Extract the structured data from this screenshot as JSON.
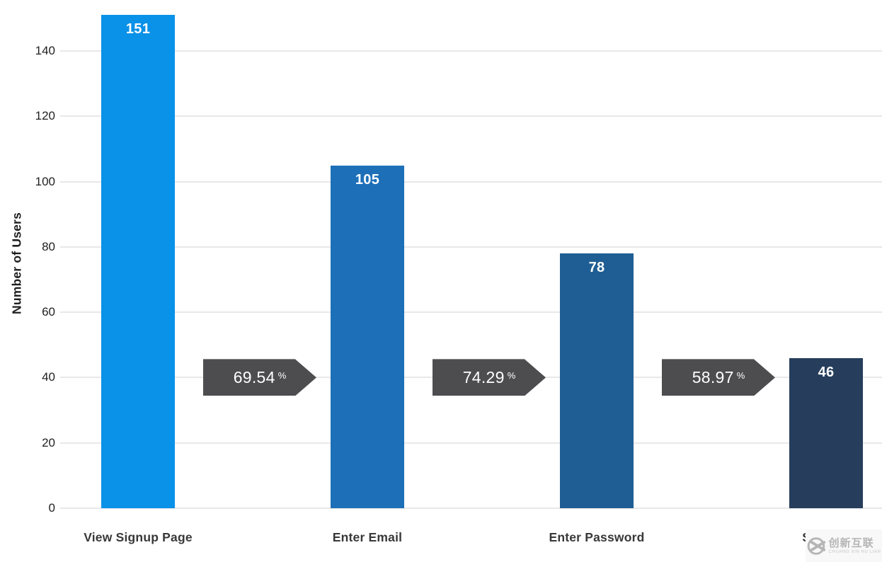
{
  "chart_data": {
    "type": "bar",
    "subtype": "funnel-steps-with-conversion-arrows",
    "title": "",
    "xlabel": "",
    "ylabel": "Number of Users",
    "categories": [
      "View Signup Page",
      "Enter Email",
      "Enter Password",
      "Sign Up"
    ],
    "values": [
      151,
      105,
      78,
      46
    ],
    "value_labels": [
      "151",
      "105",
      "78",
      "46"
    ],
    "conversion_rates": [
      "69.54",
      "74.29",
      "58.97"
    ],
    "percent_symbol": "%",
    "yticks": [
      0,
      20,
      40,
      60,
      80,
      100,
      120,
      140
    ],
    "ylim": [
      0,
      155
    ],
    "grid": true,
    "legend": "none",
    "bar_colors": [
      "#0a91e8",
      "#1d6fb8",
      "#1f5e94",
      "#263e5c"
    ],
    "arrow_color": "#4d4d4f",
    "gridline_color": "#e8e8e8",
    "value_label_color": "#ffffff",
    "axis_tick_color": "#1f1f1f",
    "category_label_color": "#383838"
  },
  "watermark": {
    "cn": "创新互联",
    "en": "CHUANG XIN HU LIAN"
  }
}
